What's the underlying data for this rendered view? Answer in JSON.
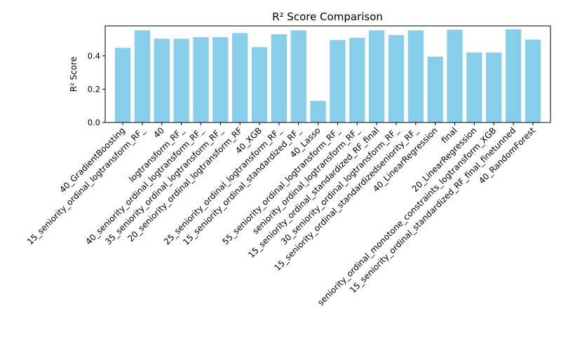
{
  "chart_data": {
    "type": "bar",
    "title": "R² Score Comparison",
    "xlabel": "",
    "ylabel": "R² Score",
    "ylim": [
      0,
      0.58
    ],
    "yticks": [
      0.0,
      0.2,
      0.4
    ],
    "ytick_labels": [
      "0.0",
      "0.2",
      "0.4"
    ],
    "bar_color": "#87CEEB",
    "grid": false,
    "categories": [
      "40_GradientBoosting",
      "15_seniority_ordinal_logtransform_RF_",
      "40",
      "logtransform_RF_",
      "40_seniority_ordinal_logtransform_RF_",
      "35_seniority_ordinal_logtransform_RF_",
      "20_seniority_ordinal_logtransform_RF",
      "40_XGB",
      "25_seniority_ordinal_logtransform_RF_",
      "15_seniority_ordinal_standardized_RF_",
      "40_Lasso",
      "55_seniority_ordinal_logtransform_RF_",
      "seniority_ordinal_logtransform_RF_",
      "15_seniority_ordinal_standardized_RF_final",
      "30_seniority_ordinal_logtransform_RF_",
      "15_seniority_ordinal_standardizedseniority_RF_",
      "40_LinearRegression",
      "final",
      "20_LinearRegression",
      "seniority_ordinal_monotone_constraints_logtransform_XGB",
      "15_seniority_ordinal_standardized_RF_final_finetunned",
      "40_RandomForest"
    ],
    "values": [
      0.448,
      0.553,
      0.503,
      0.503,
      0.512,
      0.512,
      0.537,
      0.452,
      0.53,
      0.553,
      0.13,
      0.495,
      0.508,
      0.553,
      0.525,
      0.553,
      0.395,
      0.557,
      0.42,
      0.42,
      0.56,
      0.498
    ]
  }
}
